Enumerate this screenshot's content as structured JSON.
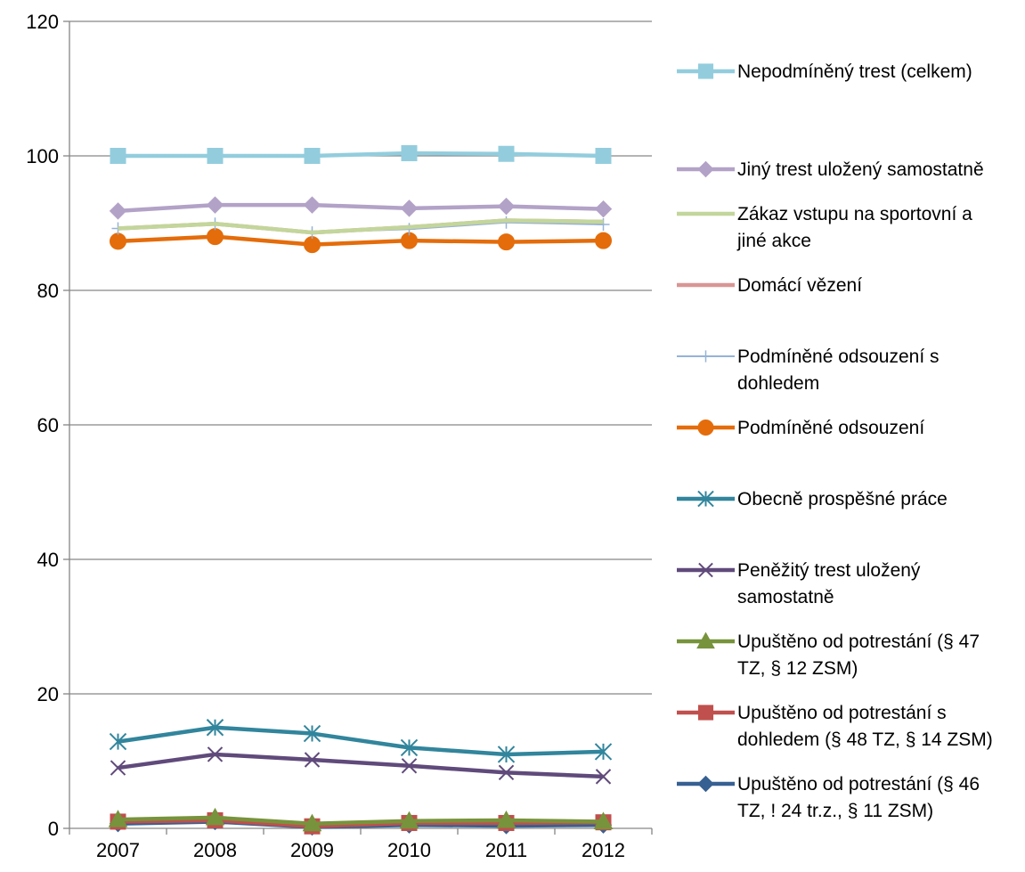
{
  "chart_data": {
    "type": "line",
    "title": "",
    "xlabel": "",
    "ylabel": "",
    "x": [
      "2007",
      "2008",
      "2009",
      "2010",
      "2011",
      "2012"
    ],
    "ylim": [
      0,
      120
    ],
    "yticks": [
      0,
      20,
      40,
      60,
      80,
      100,
      120
    ],
    "grid": "horizontal",
    "legend_position": "right",
    "series": [
      {
        "name": "Nepodmíněný trest (celkem)",
        "values": [
          100,
          100,
          100,
          100.4,
          100.3,
          100
        ],
        "color": "#93CDDD",
        "marker": "square"
      },
      {
        "name": "Jiný trest uložený samostatně",
        "values": [
          91.8,
          92.7,
          92.7,
          92.2,
          92.5,
          92.1
        ],
        "color": "#B3A2C7",
        "marker": "diamond"
      },
      {
        "name": "Zákaz vstupu na sportovní a jiné akce",
        "values": [
          89.2,
          89.9,
          88.6,
          89.4,
          90.4,
          90.2
        ],
        "color": "#C3D69B",
        "marker": "none"
      },
      {
        "name": "Domácí vězení",
        "values": [
          89.2,
          89.9,
          88.6,
          89.4,
          90.4,
          90.2
        ],
        "color": "#D99694",
        "marker": "none"
      },
      {
        "name": "Podmíněné odsouzení s dohledem",
        "values": [
          89.2,
          89.9,
          88.6,
          89.1,
          90.1,
          89.8
        ],
        "color": "#95B3D7",
        "marker": "plus"
      },
      {
        "name": "Podmíněné odsouzení",
        "values": [
          87.3,
          88.0,
          86.8,
          87.4,
          87.2,
          87.4
        ],
        "color": "#E46C0A",
        "marker": "circle"
      },
      {
        "name": "Obecně prospěšné práce",
        "values": [
          12.9,
          15.0,
          14.1,
          12.0,
          11.0,
          11.4
        ],
        "color": "#31859C",
        "marker": "asterisk"
      },
      {
        "name": "Peněžitý trest uložený samostatně",
        "values": [
          9.0,
          11.0,
          10.2,
          9.3,
          8.3,
          7.7
        ],
        "color": "#604A7B",
        "marker": "x"
      },
      {
        "name": "Upuštěno od potrestání (§ 47 TZ, § 12 ZSM)",
        "values": [
          1.3,
          1.6,
          0.7,
          1.1,
          1.2,
          1.0
        ],
        "color": "#77933C",
        "marker": "triangle"
      },
      {
        "name": "Upuštěno od potrestání s dohledem (§ 48 TZ, § 14 ZSM)",
        "values": [
          1.0,
          1.2,
          0.3,
          0.8,
          0.8,
          0.9
        ],
        "color": "#C0504D",
        "marker": "square"
      },
      {
        "name": "Upuštěno od potrestání (§ 46 TZ, ! 24 tr.z., § 11 ZSM)",
        "values": [
          0.7,
          1.0,
          0.2,
          0.5,
          0.4,
          0.5
        ],
        "color": "#376092",
        "marker": "diamond"
      }
    ]
  }
}
